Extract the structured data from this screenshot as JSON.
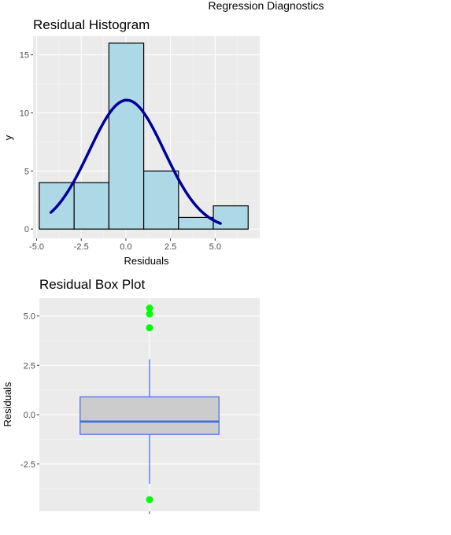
{
  "page": {
    "title": "Regression Diagnostics"
  },
  "chart_data": [
    {
      "type": "bar",
      "subtype": "histogram",
      "title": "Residual Histogram",
      "xlabel": "Residuals",
      "ylabel": "y",
      "xlim": [
        -5.2,
        7.5
      ],
      "ylim": [
        -0.8,
        16.6
      ],
      "x_ticks": [
        -5.0,
        -2.5,
        0.0,
        2.5,
        5.0
      ],
      "x_tick_labels": [
        "-5.0",
        "-2.5",
        "0.0",
        "2.5",
        "5.0"
      ],
      "y_ticks": [
        0,
        5,
        10,
        15
      ],
      "y_tick_labels": [
        "0",
        "5",
        "10",
        "15"
      ],
      "grid": true,
      "bin_edges": [
        -4.85,
        -2.9,
        -0.95,
        1.0,
        2.95,
        4.9,
        6.85
      ],
      "counts": [
        4,
        4,
        16,
        5,
        1,
        2
      ],
      "bar_fill": "#add8e6",
      "bar_outline": "#000000",
      "density_curve": {
        "color": "#000099",
        "x_range": [
          -4.2,
          5.3
        ],
        "mean": 0.05,
        "sd": 2.1,
        "peak": 11.1
      }
    },
    {
      "type": "boxplot",
      "title": "Residual Box Plot",
      "ylabel": "Residuals",
      "ylim": [
        -4.9,
        5.9
      ],
      "y_ticks": [
        -2.5,
        0.0,
        2.5,
        5.0
      ],
      "y_tick_labels": [
        "-2.5",
        "0.0",
        "2.5",
        "5.0"
      ],
      "grid": true,
      "q1": -1.0,
      "median": -0.35,
      "q3": 0.9,
      "whisker_low": -3.5,
      "whisker_high": 2.8,
      "outliers": [
        5.4,
        5.1,
        4.4,
        -4.3
      ],
      "box_fill": "#cccccc",
      "box_outline": "#4169e1",
      "outlier_color": "#00ff00"
    }
  ]
}
